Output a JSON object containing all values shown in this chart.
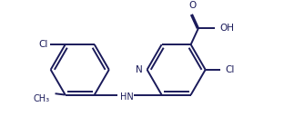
{
  "background": "#ffffff",
  "line_color": "#1a1a5a",
  "line_width": 1.4,
  "figsize": [
    3.12,
    1.5
  ],
  "dpi": 100,
  "xlim": [
    0.0,
    10.5
  ],
  "ylim": [
    0.5,
    5.5
  ]
}
